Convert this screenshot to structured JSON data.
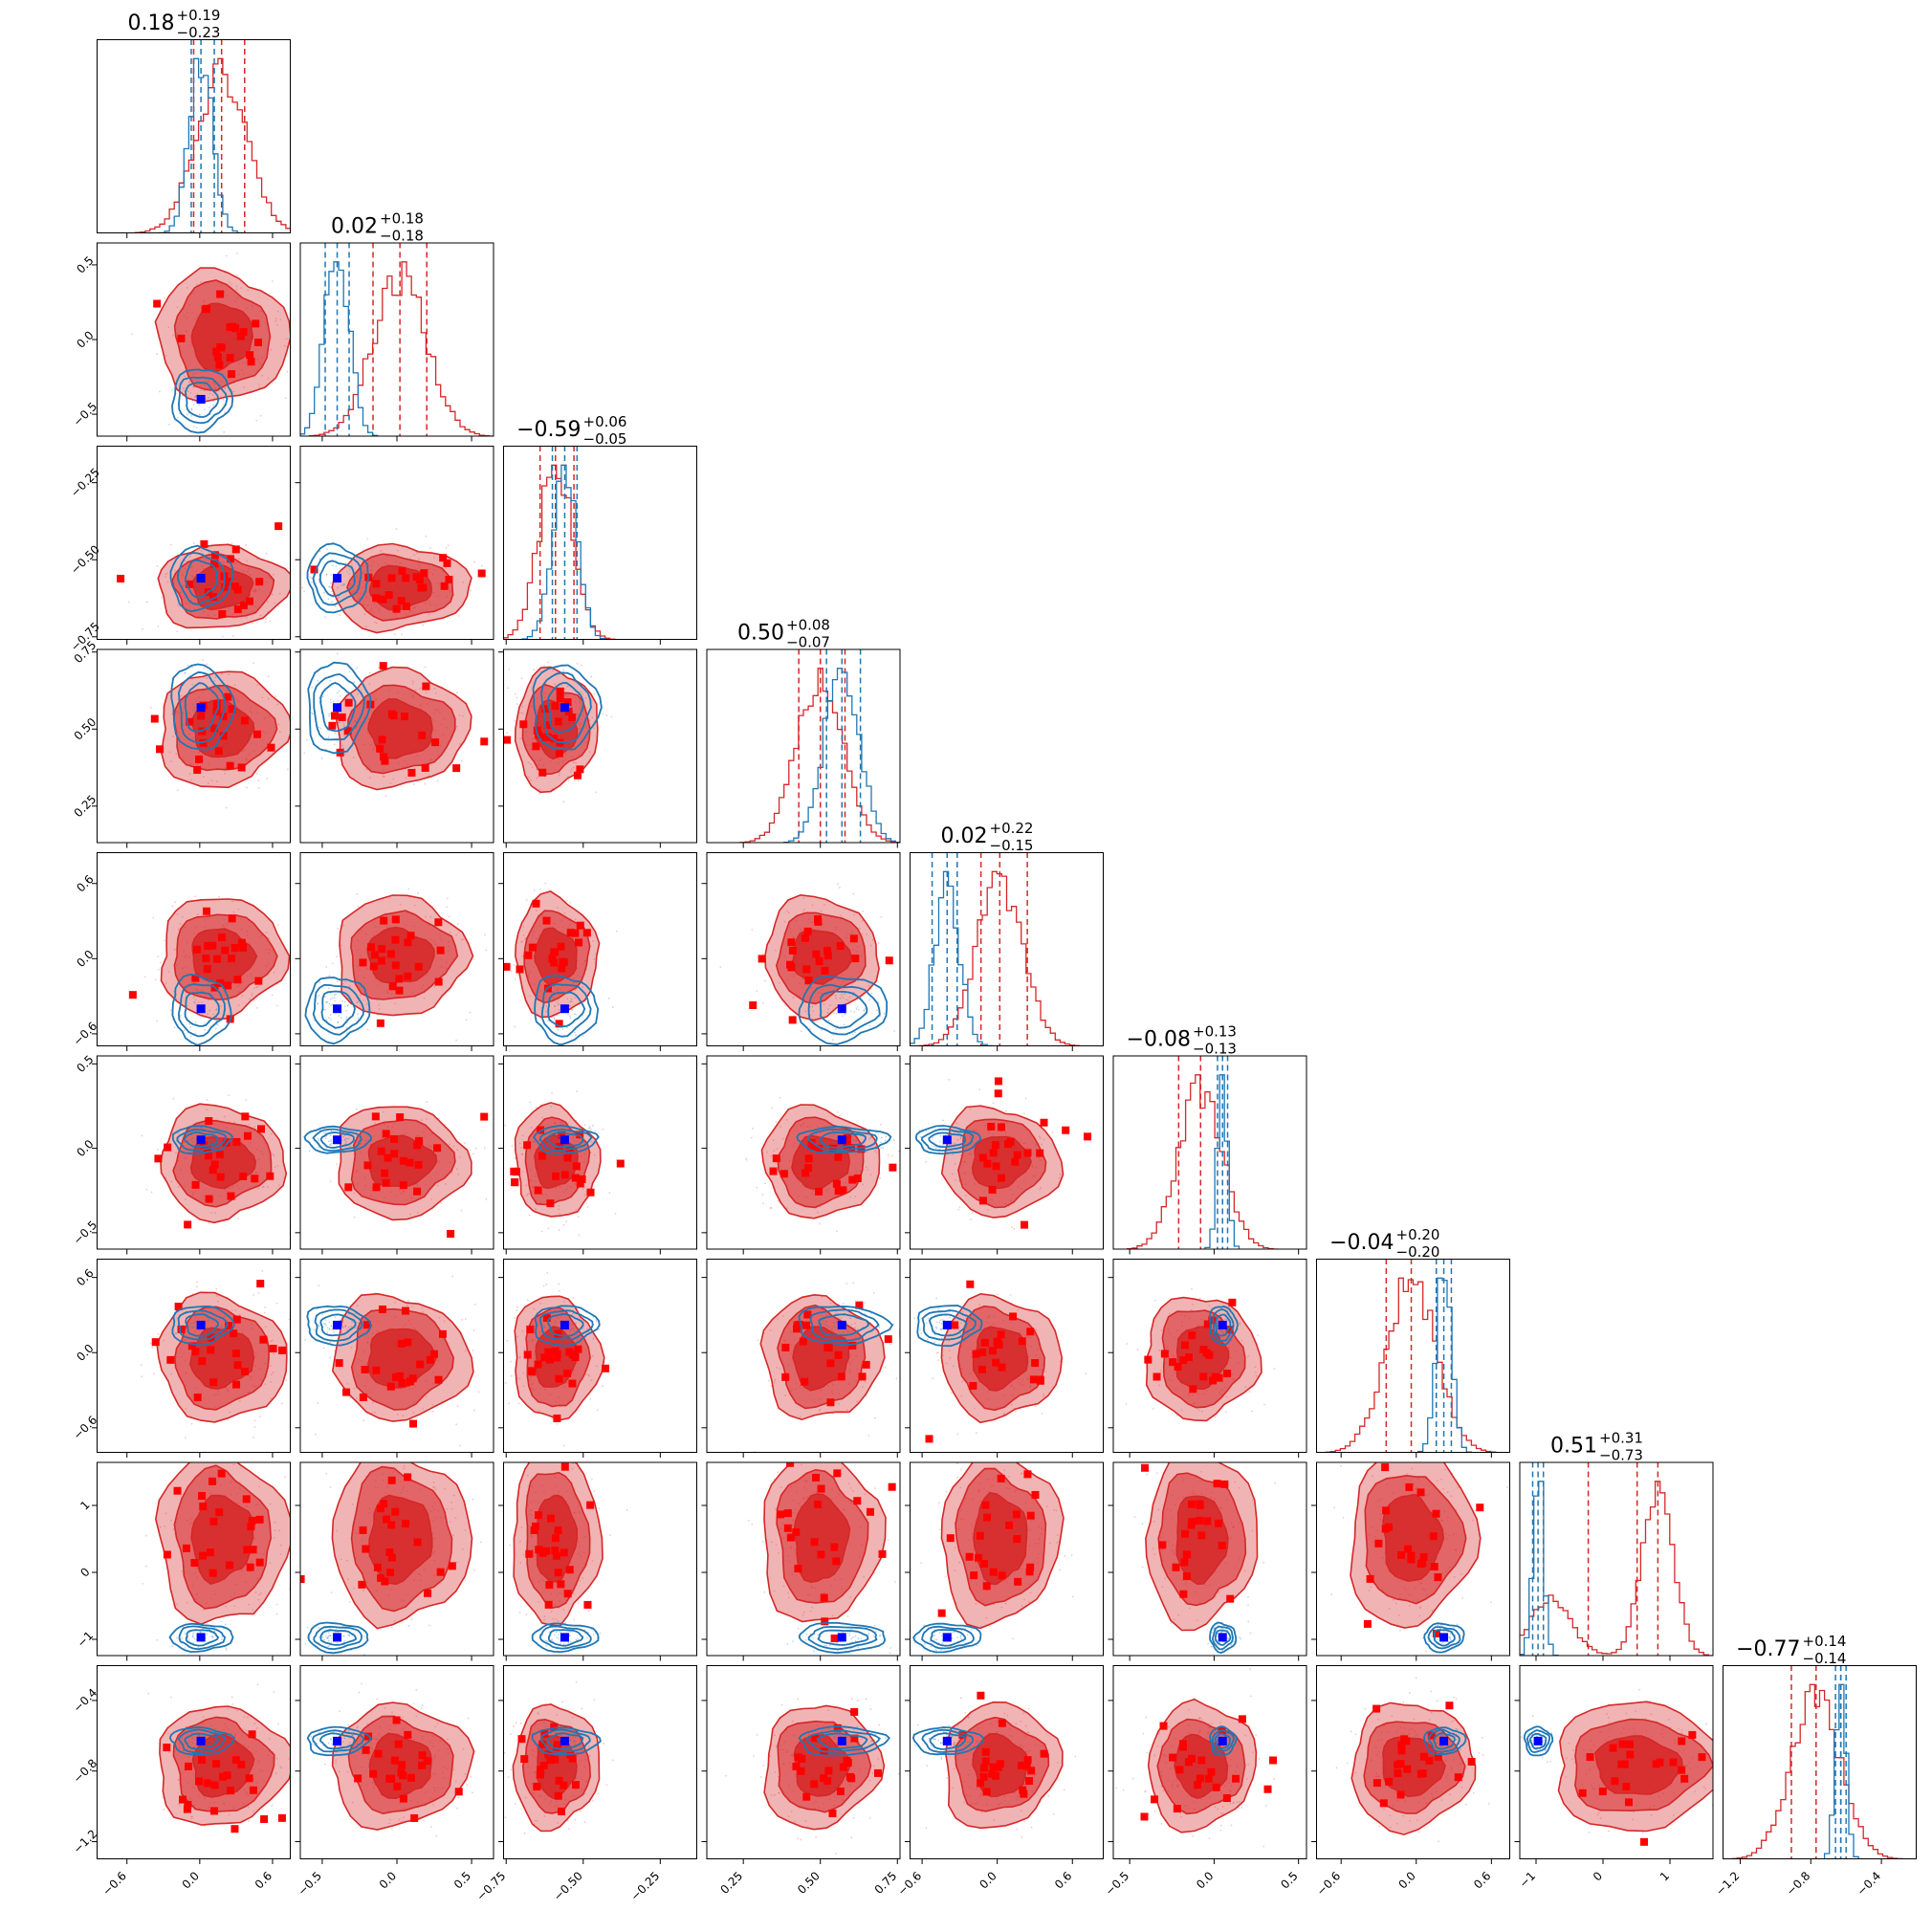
{
  "chart_data": {
    "type": "corner",
    "n_params": 9,
    "series": [
      {
        "name": "",
        "color": "#d62728",
        "style": "filled-contours-with-square-markers"
      },
      {
        "name": "",
        "color": "#1f77b4",
        "style": "line-contours"
      }
    ],
    "marker_color": "#0000ff",
    "parameters": [
      {
        "range": [
          -0.85,
          0.75
        ],
        "ticks": [
          "−0.6",
          "0.0",
          "0.6"
        ],
        "tickvals": [
          -0.6,
          0.0,
          0.6
        ],
        "title": {
          "median": "0.18",
          "plus": "+0.19",
          "minus": "−0.23"
        },
        "red_quantiles": [
          -0.05,
          0.18,
          0.37
        ],
        "blue_quantiles": [
          -0.07,
          0.01,
          0.12
        ],
        "truth": 0.01
      },
      {
        "range": [
          -0.65,
          0.65
        ],
        "ticks": [
          "−0.5",
          "0.0",
          "0.5"
        ],
        "tickvals": [
          -0.5,
          0.0,
          0.5
        ],
        "title": {
          "median": "0.02",
          "plus": "+0.18",
          "minus": "−0.18"
        },
        "red_quantiles": [
          -0.16,
          0.02,
          0.2
        ],
        "blue_quantiles": [
          -0.48,
          -0.4,
          -0.32
        ],
        "truth": -0.4
      },
      {
        "range": [
          -0.76,
          -0.13
        ],
        "ticks": [
          "−0.75",
          "−0.50",
          "−0.25"
        ],
        "tickvals": [
          -0.75,
          -0.5,
          -0.25
        ],
        "title": {
          "median": "−0.59",
          "plus": "+0.06",
          "minus": "−0.05"
        },
        "red_quantiles": [
          -0.64,
          -0.59,
          -0.53
        ],
        "blue_quantiles": [
          -0.6,
          -0.56,
          -0.52
        ],
        "truth": -0.56
      },
      {
        "range": [
          0.13,
          0.76
        ],
        "ticks": [
          "0.25",
          "0.50",
          "0.75"
        ],
        "tickvals": [
          0.25,
          0.5,
          0.75
        ],
        "title": {
          "median": "0.50",
          "plus": "+0.08",
          "minus": "−0.07"
        },
        "red_quantiles": [
          0.43,
          0.5,
          0.58
        ],
        "blue_quantiles": [
          0.52,
          0.57,
          0.63
        ],
        "truth": 0.57
      },
      {
        "range": [
          -0.7,
          0.85
        ],
        "ticks": [
          "−0.6",
          "0.0",
          "0.6"
        ],
        "tickvals": [
          -0.6,
          0.0,
          0.6
        ],
        "title": {
          "median": "0.02",
          "plus": "+0.22",
          "minus": "−0.15"
        },
        "red_quantiles": [
          -0.13,
          0.02,
          0.24
        ],
        "blue_quantiles": [
          -0.52,
          -0.4,
          -0.32
        ],
        "truth": -0.4
      },
      {
        "range": [
          -0.6,
          0.55
        ],
        "ticks": [
          "−0.5",
          "0.0",
          "0.5"
        ],
        "tickvals": [
          -0.5,
          0.0,
          0.5
        ],
        "title": {
          "median": "−0.08",
          "plus": "+0.13",
          "minus": "−0.13"
        },
        "red_quantiles": [
          -0.21,
          -0.08,
          0.05
        ],
        "blue_quantiles": [
          0.02,
          0.05,
          0.08
        ],
        "truth": 0.05
      },
      {
        "range": [
          -0.8,
          0.75
        ],
        "ticks": [
          "−0.6",
          "0.0",
          "0.6"
        ],
        "tickvals": [
          -0.6,
          0.0,
          0.6
        ],
        "title": {
          "median": "−0.04",
          "plus": "+0.20",
          "minus": "−0.20"
        },
        "red_quantiles": [
          -0.24,
          -0.04,
          0.16
        ],
        "blue_quantiles": [
          0.16,
          0.22,
          0.28
        ],
        "truth": 0.22
      },
      {
        "range": [
          -1.25,
          1.65
        ],
        "ticks": [
          "−1",
          "0",
          "1"
        ],
        "tickvals": [
          -1,
          0,
          1
        ],
        "title": {
          "median": "0.51",
          "plus": "+0.31",
          "minus": "−0.73"
        },
        "red_quantiles": [
          -0.22,
          0.51,
          0.82
        ],
        "blue_quantiles": [
          -1.05,
          -0.97,
          -0.89
        ],
        "truth": -0.97
      },
      {
        "range": [
          -1.3,
          -0.2
        ],
        "ticks": [
          "−1.2",
          "−0.8",
          "−0.4"
        ],
        "tickvals": [
          -1.2,
          -0.8,
          -0.4
        ],
        "title": {
          "median": "−0.77",
          "plus": "+0.14",
          "minus": "−0.14"
        },
        "red_quantiles": [
          -0.91,
          -0.77,
          -0.63
        ],
        "blue_quantiles": [
          -0.66,
          -0.63,
          -0.6
        ],
        "truth": -0.63
      }
    ]
  }
}
